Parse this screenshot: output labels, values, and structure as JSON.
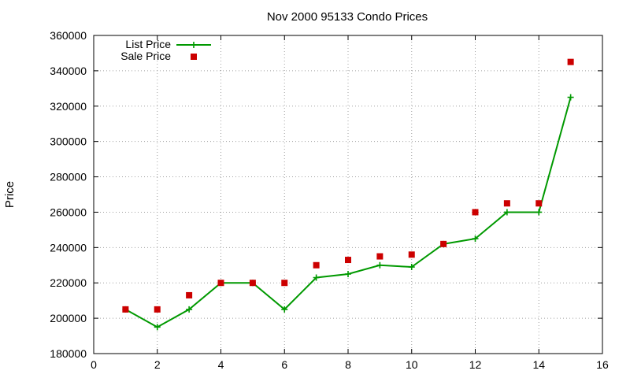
{
  "chart_data": {
    "type": "line",
    "title": "Nov 2000 95133 Condo Prices",
    "xlabel": "",
    "ylabel": "Price",
    "xlim": [
      0,
      16
    ],
    "ylim": [
      180000,
      360000
    ],
    "xticks": [
      0,
      2,
      4,
      6,
      8,
      10,
      12,
      14,
      16
    ],
    "yticks": [
      180000,
      200000,
      220000,
      240000,
      260000,
      280000,
      300000,
      320000,
      340000,
      360000
    ],
    "grid": true,
    "legend_position": "top-left",
    "series": [
      {
        "name": "List Price",
        "style": "line+cross",
        "color": "#009900",
        "x": [
          1,
          2,
          3,
          4,
          5,
          6,
          7,
          8,
          9,
          10,
          11,
          12,
          13,
          14,
          15
        ],
        "y": [
          205000,
          195000,
          205000,
          220000,
          220000,
          205000,
          223000,
          225000,
          230000,
          229000,
          242000,
          245000,
          260000,
          260000,
          325000
        ]
      },
      {
        "name": "Sale Price",
        "style": "square",
        "color": "#cc0000",
        "x": [
          1,
          2,
          3,
          4,
          5,
          6,
          7,
          8,
          9,
          10,
          11,
          12,
          13,
          14,
          15
        ],
        "y": [
          205000,
          205000,
          213000,
          220000,
          220000,
          220000,
          230000,
          233000,
          235000,
          236000,
          242000,
          260000,
          265000,
          265000,
          345000
        ]
      }
    ]
  }
}
